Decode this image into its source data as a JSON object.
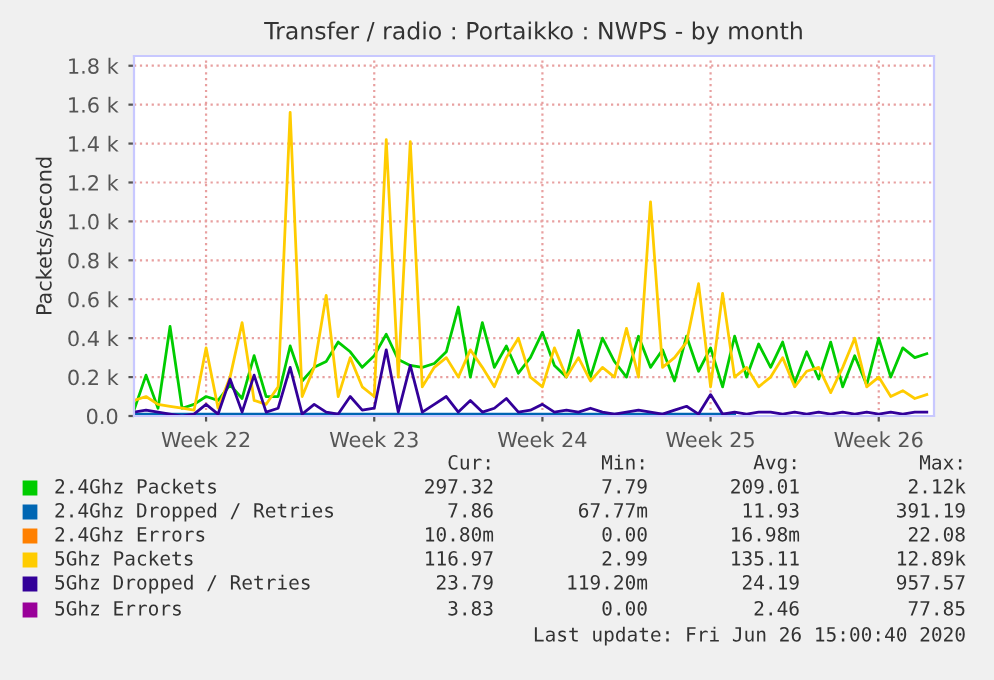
{
  "chart_data": {
    "type": "line",
    "title": "Transfer / radio : Portaikko : NWPS - by month",
    "ylabel": "Packets/second",
    "categories": [
      null,
      null,
      null,
      null,
      null,
      null,
      "Week 22",
      null,
      null,
      null,
      null,
      null,
      null,
      null,
      null,
      null,
      null,
      null,
      null,
      null,
      "Week 23",
      null,
      null,
      null,
      null,
      null,
      null,
      null,
      null,
      null,
      null,
      null,
      null,
      null,
      "Week 24",
      null,
      null,
      null,
      null,
      null,
      null,
      null,
      null,
      null,
      null,
      null,
      null,
      null,
      "Week 25",
      null,
      null,
      null,
      null,
      null,
      null,
      null,
      null,
      null,
      null,
      null,
      null,
      null,
      "Week 26",
      null,
      null,
      null,
      null
    ],
    "series": [
      {
        "name": "2.4Ghz Packets",
        "color": "#00cc00",
        "values": [
          30,
          210,
          40,
          460,
          40,
          60,
          100,
          80,
          160,
          90,
          310,
          100,
          100,
          360,
          180,
          250,
          280,
          380,
          330,
          250,
          310,
          420,
          290,
          260,
          250,
          270,
          330,
          560,
          200,
          480,
          250,
          360,
          220,
          300,
          430,
          260,
          200,
          440,
          200,
          400,
          280,
          200,
          410,
          250,
          340,
          180,
          410,
          230,
          350,
          150,
          410,
          200,
          370,
          250,
          380,
          170,
          330,
          190,
          380,
          150,
          310,
          160,
          400,
          200,
          350,
          300,
          320
        ]
      },
      {
        "name": "2.4Ghz Dropped / Retries",
        "color": "#0066b3",
        "values": [
          10,
          10,
          10,
          10,
          10,
          10,
          10,
          10,
          10,
          10,
          10,
          10,
          10,
          10,
          10,
          10,
          10,
          10,
          10,
          10,
          10,
          10,
          10,
          10,
          10,
          10,
          10,
          10,
          10,
          10,
          10,
          10,
          10,
          10,
          10,
          10,
          10,
          10,
          10,
          10,
          10,
          10,
          10,
          10,
          10,
          10,
          10,
          10,
          10,
          10,
          10,
          null,
          null,
          null,
          null,
          null,
          null,
          null,
          null,
          null,
          null,
          null,
          null,
          null,
          null,
          null,
          null
        ]
      },
      {
        "name": "2.4Ghz Errors",
        "color": "#ff8000",
        "values": [
          null,
          null,
          null,
          null,
          null,
          null,
          null,
          null,
          null,
          null,
          null,
          null,
          null,
          null,
          null,
          null,
          null,
          null,
          null,
          null,
          null,
          null,
          null,
          null,
          null,
          null,
          null,
          null,
          null,
          null,
          null,
          null,
          null,
          null,
          null,
          null,
          null,
          null,
          null,
          null,
          null,
          null,
          null,
          null,
          null,
          null,
          null,
          null,
          null,
          null,
          null,
          null,
          null,
          null,
          null,
          null,
          null,
          null,
          null,
          null,
          null,
          null,
          null,
          null,
          null,
          null,
          null
        ]
      },
      {
        "name": "5Ghz Packets",
        "color": "#ffcc00",
        "values": [
          80,
          100,
          60,
          50,
          40,
          30,
          350,
          40,
          200,
          480,
          80,
          60,
          150,
          1560,
          100,
          250,
          620,
          100,
          300,
          150,
          100,
          1420,
          200,
          1410,
          150,
          250,
          300,
          200,
          340,
          250,
          150,
          300,
          400,
          200,
          150,
          350,
          200,
          300,
          180,
          250,
          200,
          450,
          200,
          1100,
          250,
          300,
          380,
          680,
          150,
          630,
          200,
          250,
          150,
          200,
          300,
          150,
          230,
          250,
          120,
          250,
          400,
          150,
          200,
          100,
          130,
          90,
          110
        ]
      },
      {
        "name": "5Ghz Dropped / Retries",
        "color": "#330099",
        "values": [
          20,
          30,
          20,
          10,
          0,
          10,
          60,
          10,
          190,
          20,
          210,
          20,
          40,
          250,
          10,
          60,
          20,
          10,
          100,
          30,
          40,
          340,
          20,
          260,
          20,
          60,
          100,
          20,
          80,
          20,
          40,
          90,
          20,
          30,
          60,
          20,
          30,
          20,
          40,
          20,
          10,
          20,
          30,
          20,
          10,
          30,
          50,
          10,
          110,
          10,
          20,
          10,
          20,
          20,
          10,
          20,
          10,
          20,
          10,
          20,
          10,
          20,
          10,
          20,
          10,
          20,
          20
        ]
      },
      {
        "name": "5Ghz Errors",
        "color": "#990099",
        "values": [
          null,
          null,
          null,
          null,
          null,
          null,
          null,
          null,
          null,
          null,
          null,
          null,
          null,
          null,
          null,
          null,
          null,
          null,
          null,
          null,
          null,
          null,
          null,
          null,
          null,
          null,
          null,
          null,
          null,
          null,
          null,
          null,
          null,
          null,
          null,
          null,
          null,
          null,
          null,
          null,
          null,
          null,
          null,
          null,
          null,
          null,
          null,
          null,
          null,
          null,
          null,
          null,
          null,
          null,
          null,
          null,
          null,
          null,
          null,
          null,
          null,
          null,
          null,
          null,
          null,
          null,
          null
        ]
      }
    ],
    "ylim": [
      0,
      1850
    ],
    "yticks": [
      {
        "value": 0,
        "label": "0.0"
      },
      {
        "value": 200,
        "label": "0.2 k"
      },
      {
        "value": 400,
        "label": "0.4 k"
      },
      {
        "value": 600,
        "label": "0.6 k"
      },
      {
        "value": 800,
        "label": "0.8 k"
      },
      {
        "value": 1000,
        "label": "1.0 k"
      },
      {
        "value": 1200,
        "label": "1.2 k"
      },
      {
        "value": 1400,
        "label": "1.4 k"
      },
      {
        "value": 1600,
        "label": "1.6 k"
      },
      {
        "value": 1800,
        "label": "1.8 k"
      }
    ],
    "grid": true,
    "legend": "bottom",
    "marker": "none",
    "line_style": "solid",
    "annotations": [
      "Cur:",
      "Min:",
      "Avg:",
      "Max:",
      "297.32",
      "7.79",
      "209.01",
      "2.12k",
      "7.86",
      "67.77m",
      "11.93",
      "391.19",
      "10.80m",
      "0.00",
      "16.98m",
      "22.08",
      "116.97",
      "2.99",
      "135.11",
      "12.89k",
      "23.79",
      "119.20m",
      "24.19",
      "957.57",
      "3.83",
      "0.00",
      "2.46",
      "77.85",
      "Last update: Fri Jun 26 15:00:40 2020"
    ]
  }
}
